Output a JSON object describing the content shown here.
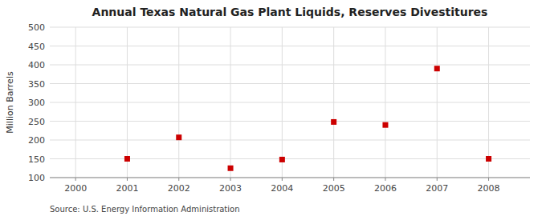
{
  "chart_data": {
    "type": "scatter",
    "title": "Annual Texas Natural Gas Plant Liquids, Reserves Divestitures",
    "ylabel": "Million Barrels",
    "source": "Source: U.S. Energy Information Administration",
    "x": [
      2001,
      2002,
      2003,
      2004,
      2005,
      2006,
      2007,
      2008
    ],
    "values": [
      150,
      207,
      125,
      148,
      248,
      240,
      390,
      150
    ],
    "color": "#cc0000",
    "marker": "square",
    "xlim": [
      1999.5,
      2008.8
    ],
    "ylim": [
      100,
      500
    ],
    "xticks": [
      2000,
      2001,
      2002,
      2003,
      2004,
      2005,
      2006,
      2007,
      2008
    ],
    "yticks": [
      100,
      150,
      200,
      250,
      300,
      350,
      400,
      450,
      500
    ],
    "grid": true
  }
}
